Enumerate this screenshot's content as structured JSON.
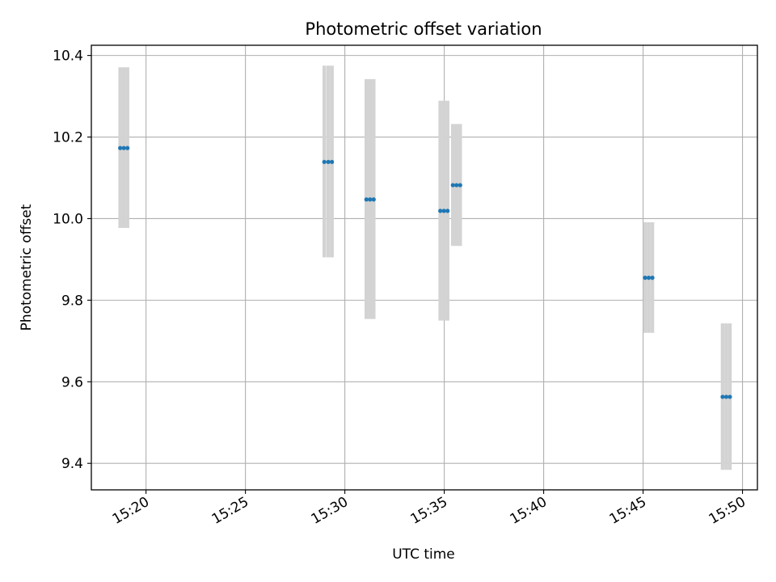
{
  "chart_data": {
    "type": "scatter",
    "title": "Photometric offset variation",
    "xlabel": "UTC time",
    "ylabel": "Photometric offset",
    "x_axis_type": "time",
    "xlim": [
      "15:17:15",
      "15:50:45"
    ],
    "ylim": [
      9.335,
      10.425
    ],
    "grid": true,
    "xticks": [
      "15:20",
      "15:25",
      "15:30",
      "15:35",
      "15:40",
      "15:45",
      "15:50"
    ],
    "yticks": [
      9.4,
      9.6,
      9.8,
      10.0,
      10.2,
      10.4
    ],
    "point_color": "#1f77b4",
    "errorbar_color": "#d3d3d3",
    "points": [
      {
        "x": "15:18:42",
        "y": 10.173,
        "err_low": 9.977,
        "err_high": 10.371
      },
      {
        "x": "15:18:53",
        "y": 10.173,
        "err_low": 9.977,
        "err_high": 10.371
      },
      {
        "x": "15:19:04",
        "y": 10.173,
        "err_low": 9.977,
        "err_high": 10.371
      },
      {
        "x": "15:28:58",
        "y": 10.139,
        "err_low": 9.905,
        "err_high": 10.375
      },
      {
        "x": "15:29:10",
        "y": 10.139,
        "err_low": 9.905,
        "err_high": 10.375
      },
      {
        "x": "15:29:21",
        "y": 10.139,
        "err_low": 9.905,
        "err_high": 10.375
      },
      {
        "x": "15:31:05",
        "y": 10.047,
        "err_low": 9.754,
        "err_high": 10.342
      },
      {
        "x": "15:31:16",
        "y": 10.047,
        "err_low": 9.754,
        "err_high": 10.342
      },
      {
        "x": "15:31:27",
        "y": 10.047,
        "err_low": 9.754,
        "err_high": 10.342
      },
      {
        "x": "15:34:48",
        "y": 10.019,
        "err_low": 9.75,
        "err_high": 10.289
      },
      {
        "x": "15:34:59",
        "y": 10.019,
        "err_low": 9.75,
        "err_high": 10.289
      },
      {
        "x": "15:35:10",
        "y": 10.019,
        "err_low": 9.75,
        "err_high": 10.289
      },
      {
        "x": "15:35:26",
        "y": 10.082,
        "err_low": 9.933,
        "err_high": 10.232
      },
      {
        "x": "15:35:37",
        "y": 10.082,
        "err_low": 9.933,
        "err_high": 10.232
      },
      {
        "x": "15:35:48",
        "y": 10.082,
        "err_low": 9.933,
        "err_high": 10.232
      },
      {
        "x": "15:45:06",
        "y": 9.855,
        "err_low": 9.72,
        "err_high": 9.991
      },
      {
        "x": "15:45:17",
        "y": 9.855,
        "err_low": 9.72,
        "err_high": 9.991
      },
      {
        "x": "15:45:28",
        "y": 9.855,
        "err_low": 9.72,
        "err_high": 9.991
      },
      {
        "x": "15:49:00",
        "y": 9.563,
        "err_low": 9.384,
        "err_high": 9.743
      },
      {
        "x": "15:49:11",
        "y": 9.563,
        "err_low": 9.384,
        "err_high": 9.743
      },
      {
        "x": "15:49:22",
        "y": 9.563,
        "err_low": 9.384,
        "err_high": 9.743
      }
    ]
  }
}
